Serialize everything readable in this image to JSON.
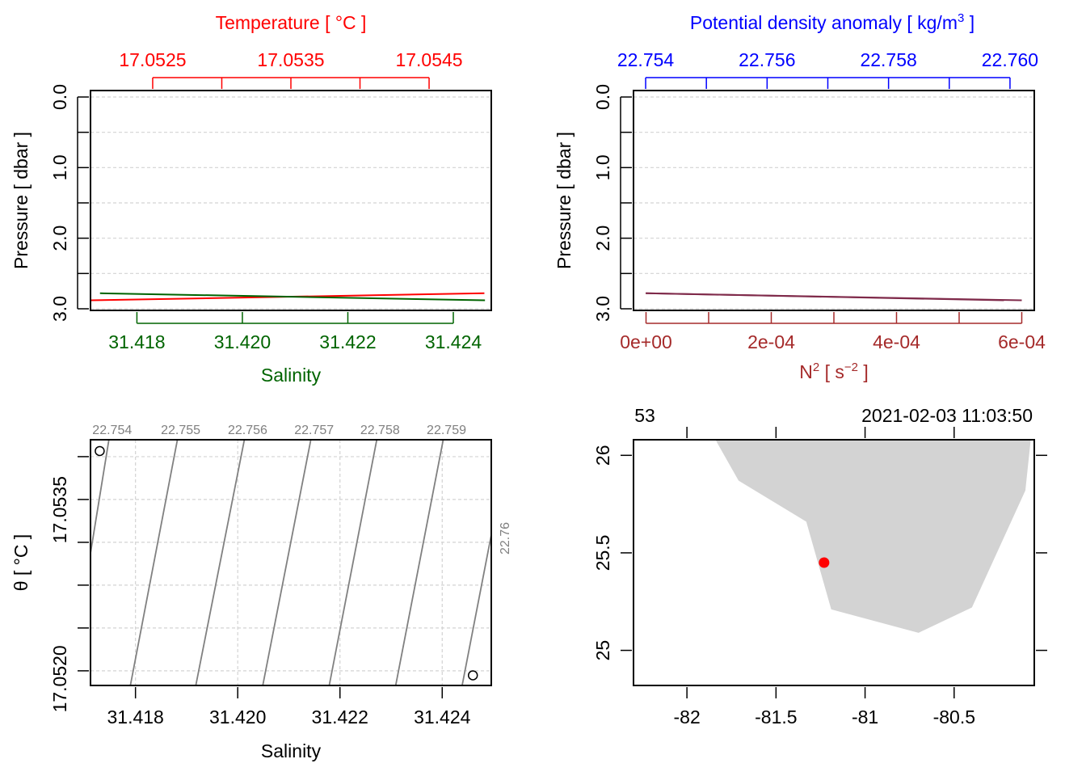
{
  "colors": {
    "temperature": "#ff0000",
    "salinity": "#006400",
    "density": "#0000ff",
    "n2": "#a52a2a",
    "density_line": "#7f2a4a",
    "isopycnal": "#808080",
    "land": "#d3d3d3",
    "station": "#ff0000",
    "grid": "#d3d3d3",
    "text": "#000000"
  },
  "chart_data": [
    {
      "id": "ts-profile",
      "type": "line",
      "title": "Temperature [ °C ]",
      "top_axis": {
        "label": "Temperature [ °C ]",
        "range": [
          17.05205,
          17.05495
        ],
        "ticks": [
          17.0525,
          17.053,
          17.0535,
          17.054,
          17.0545
        ],
        "tick_labels": [
          "17.0525",
          "",
          "17.0535",
          "",
          "17.0545"
        ]
      },
      "bottom_axis": {
        "label": "Salinity",
        "range": [
          31.41712,
          31.42472
        ],
        "ticks": [
          31.418,
          31.42,
          31.422,
          31.424
        ],
        "tick_labels": [
          "31.418",
          "31.420",
          "31.422",
          "31.424"
        ]
      },
      "y_axis": {
        "label": "Pressure [ dbar ]",
        "range": [
          3.0,
          0.0
        ],
        "reversed": true,
        "ticks": [
          0.0,
          0.5,
          1.0,
          1.5,
          2.0,
          2.5,
          3.0
        ],
        "tick_labels": [
          "0.0",
          "",
          "1.0",
          "",
          "2.0",
          "",
          "3.0"
        ]
      },
      "grid": true,
      "series": [
        {
          "name": "Temperature",
          "axis": "top",
          "x": [
            17.05205,
            17.0549
          ],
          "y": [
            2.88,
            2.78
          ]
        },
        {
          "name": "Salinity",
          "axis": "bottom",
          "x": [
            31.4173,
            31.4246
          ],
          "y": [
            2.78,
            2.88
          ]
        }
      ]
    },
    {
      "id": "density-n2-profile",
      "type": "line",
      "top_axis": {
        "label": "Potential density anomaly [ kg/m³ ]",
        "range": [
          22.7538,
          22.7604
        ],
        "ticks": [
          22.754,
          22.755,
          22.756,
          22.757,
          22.758,
          22.759,
          22.76
        ],
        "tick_labels": [
          "22.754",
          "",
          "22.756",
          "",
          "22.758",
          "",
          "22.760"
        ]
      },
      "bottom_axis": {
        "label": "N² [ s⁻² ]",
        "range": [
          -2e-05,
          0.00062
        ],
        "ticks": [
          0,
          0.0001,
          0.0002,
          0.0003,
          0.0004,
          0.0005,
          0.0006
        ],
        "tick_labels": [
          "0e+00",
          "",
          "2e-04",
          "",
          "4e-04",
          "",
          "6e-04"
        ]
      },
      "y_axis": {
        "label": "Pressure [ dbar ]",
        "range": [
          3.0,
          0.0
        ],
        "reversed": true,
        "ticks": [
          0.0,
          0.5,
          1.0,
          1.5,
          2.0,
          2.5,
          3.0
        ],
        "tick_labels": [
          "0.0",
          "",
          "1.0",
          "",
          "2.0",
          "",
          "3.0"
        ]
      },
      "grid": true,
      "series": [
        {
          "name": "Potential density anomaly",
          "axis": "top",
          "x": [
            22.754,
            22.7599
          ],
          "y": [
            2.78,
            2.88
          ]
        },
        {
          "name": "N2",
          "axis": "bottom",
          "x": [
            0,
            0.0006
          ],
          "y": [
            2.78,
            2.88
          ]
        }
      ]
    },
    {
      "id": "ts-diagram",
      "type": "scatter",
      "xlabel": "Salinity",
      "ylabel": "θ [ °C ]",
      "xlim": [
        31.41712,
        31.42496
      ],
      "ylim": [
        17.05187,
        17.05405
      ],
      "x_ticks": [
        31.418,
        31.42,
        31.422,
        31.424
      ],
      "x_tick_labels": [
        "31.418",
        "31.420",
        "31.422",
        "31.424"
      ],
      "y_ticks": [
        17.052,
        17.05238,
        17.05276,
        17.05314,
        17.05352,
        17.0539
      ],
      "y_tick_labels": [
        "17.0520",
        "",
        "",
        "17.0535",
        "",
        ""
      ],
      "y_tick_labels_shown": [
        {
          "value": 17.052,
          "label": "17.0520"
        },
        {
          "value": 17.0535,
          "label": "17.0535"
        }
      ],
      "grid": true,
      "points": [
        {
          "salinity": 31.4173,
          "theta": 17.05395
        },
        {
          "salinity": 31.4246,
          "theta": 17.05196
        }
      ],
      "isopycnals": {
        "values": [
          22.754,
          22.755,
          22.756,
          22.757,
          22.758,
          22.759,
          22.76
        ],
        "labels": [
          "22.754",
          "22.755",
          "22.756",
          "22.757",
          "22.758",
          "22.759",
          "22.76"
        ],
        "bottom_salinity": [
          31.4167,
          31.4179,
          31.41918,
          31.42049,
          31.42179,
          31.42309,
          31.42439
        ],
        "top_salinity": [
          31.41748,
          31.41882,
          31.42013,
          31.42143,
          31.42272,
          31.42402,
          31.42532
        ]
      }
    },
    {
      "id": "station-map",
      "type": "scatter",
      "xlim": [
        -82.3,
        -80.05
      ],
      "ylim": [
        24.82,
        26.08
      ],
      "x_ticks": [
        -82,
        -81.5,
        -81,
        -80.5
      ],
      "x_tick_labels": [
        "-82",
        "-81.5",
        "-81",
        "-80.5"
      ],
      "y_ticks": [
        25,
        25.5,
        26
      ],
      "y_tick_labels": [
        "25",
        "25.5",
        "26"
      ],
      "station_label": "53",
      "datetime_label": "2021-02-03 11:03:50",
      "station": {
        "lon": -81.23,
        "lat": 25.45
      },
      "land_polygon": [
        [
          -81.84,
          26.08
        ],
        [
          -81.71,
          25.87
        ],
        [
          -81.33,
          25.66
        ],
        [
          -81.19,
          25.21
        ],
        [
          -80.7,
          25.09
        ],
        [
          -80.4,
          25.22
        ],
        [
          -80.1,
          25.82
        ],
        [
          -80.07,
          26.08
        ]
      ]
    }
  ]
}
